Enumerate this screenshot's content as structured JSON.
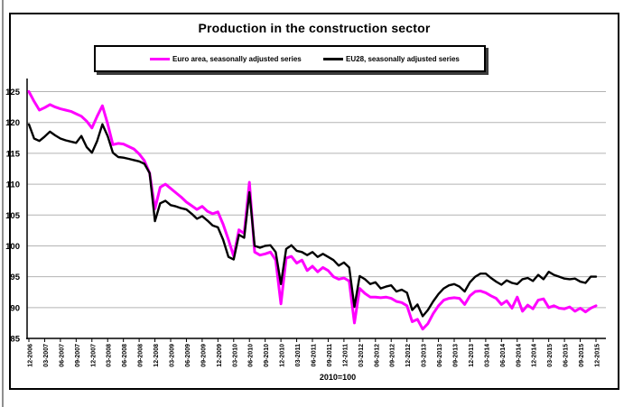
{
  "page": {
    "title": "Production in the construction sector",
    "footnote": "2010=100"
  },
  "legend": {
    "items": [
      {
        "label": "Euro area, seasonally adjusted series",
        "color": "#ff00ff"
      },
      {
        "label": "EU28, seasonally adjusted series",
        "color": "#000000"
      }
    ]
  },
  "colors": {
    "euro_area": "#ff00ff",
    "eu28": "#000000",
    "gridline": "#b3b3b3",
    "axis": "#000000"
  },
  "chart_data": {
    "type": "line",
    "title": "Production in the construction sector",
    "note": "2010=100",
    "x_unit": "month",
    "x_range": [
      "12-2006",
      "12-2015"
    ],
    "x_tick_labels": [
      "12-2006",
      "03-2007",
      "06-2007",
      "09-2007",
      "12-2007",
      "03-2008",
      "06-2008",
      "09-2008",
      "12-2008",
      "03-2009",
      "06-2009",
      "09-2009",
      "12-2009",
      "03-2010",
      "06-2010",
      "09-2010",
      "12-2010",
      "03-2011",
      "06-2011",
      "09-2011",
      "12-2011",
      "03-2012",
      "06-2012",
      "09-2012",
      "12-2012",
      "03-2013",
      "06-2013",
      "09-2013",
      "12-2013",
      "03-2014",
      "06-2014",
      "09-2014",
      "12-2014",
      "03-2015",
      "06-2015",
      "09-2015",
      "12-2015"
    ],
    "ylim": [
      85,
      125
    ],
    "yticks": [
      85,
      90,
      95,
      100,
      105,
      110,
      115,
      120,
      125
    ],
    "grid": true,
    "legend_position": "top",
    "series": [
      {
        "name": "Euro area, seasonally adjusted series",
        "color": "#ff00ff",
        "values": [
          125.0,
          123.4,
          122.0,
          122.4,
          122.9,
          122.5,
          122.2,
          122.0,
          121.8,
          121.4,
          121.0,
          120.2,
          119.1,
          121.0,
          122.7,
          119.8,
          116.4,
          116.6,
          116.5,
          116.1,
          115.7,
          114.9,
          113.8,
          111.8,
          106.0,
          109.5,
          110.0,
          109.3,
          108.6,
          107.9,
          107.1,
          106.5,
          105.9,
          106.4,
          105.6,
          105.2,
          105.5,
          103.5,
          101.0,
          98.3,
          102.6,
          102.0,
          110.3,
          99.0,
          98.5,
          98.7,
          99.0,
          97.7,
          90.6,
          98.0,
          98.3,
          97.2,
          97.7,
          96.0,
          96.7,
          95.8,
          96.5,
          96.0,
          95.0,
          94.6,
          94.8,
          94.3,
          87.5,
          93.1,
          92.3,
          91.7,
          91.7,
          91.6,
          91.7,
          91.5,
          91.0,
          90.8,
          90.3,
          87.7,
          88.1,
          86.5,
          87.4,
          89.0,
          90.3,
          91.2,
          91.5,
          91.6,
          91.5,
          90.5,
          91.9,
          92.6,
          92.7,
          92.4,
          91.9,
          91.5,
          90.5,
          91.1,
          89.9,
          91.7,
          89.4,
          90.4,
          89.8,
          91.2,
          91.4,
          90.0,
          90.3,
          89.9,
          89.8,
          90.1,
          89.4,
          89.9,
          89.3,
          89.9,
          90.3
        ]
      },
      {
        "name": "EU28, seasonally adjusted series",
        "color": "#000000",
        "values": [
          119.7,
          117.4,
          117.0,
          117.7,
          118.5,
          117.9,
          117.4,
          117.1,
          116.9,
          116.7,
          117.8,
          116.0,
          115.1,
          117.0,
          119.7,
          117.8,
          115.1,
          114.4,
          114.3,
          114.1,
          113.9,
          113.7,
          113.3,
          111.8,
          104.0,
          106.9,
          107.3,
          106.6,
          106.4,
          106.1,
          105.9,
          105.2,
          104.4,
          104.8,
          104.1,
          103.3,
          103.0,
          101.0,
          98.2,
          97.8,
          101.8,
          101.3,
          108.7,
          100.0,
          99.7,
          100.0,
          100.1,
          99.0,
          93.8,
          99.5,
          100.1,
          99.2,
          99.0,
          98.5,
          99.0,
          98.2,
          98.7,
          98.2,
          97.7,
          96.8,
          97.3,
          96.5,
          90.1,
          95.1,
          94.6,
          93.8,
          94.1,
          93.1,
          93.4,
          93.6,
          92.6,
          92.9,
          92.4,
          89.6,
          90.5,
          88.6,
          89.6,
          91.0,
          92.2,
          93.1,
          93.6,
          93.8,
          93.4,
          92.6,
          94.1,
          95.0,
          95.5,
          95.5,
          94.8,
          94.2,
          93.7,
          94.4,
          94.0,
          93.8,
          94.6,
          94.8,
          94.3,
          95.3,
          94.6,
          95.8,
          95.3,
          95.0,
          94.7,
          94.6,
          94.7,
          94.2,
          94.0,
          95.0,
          95.0
        ]
      }
    ]
  }
}
